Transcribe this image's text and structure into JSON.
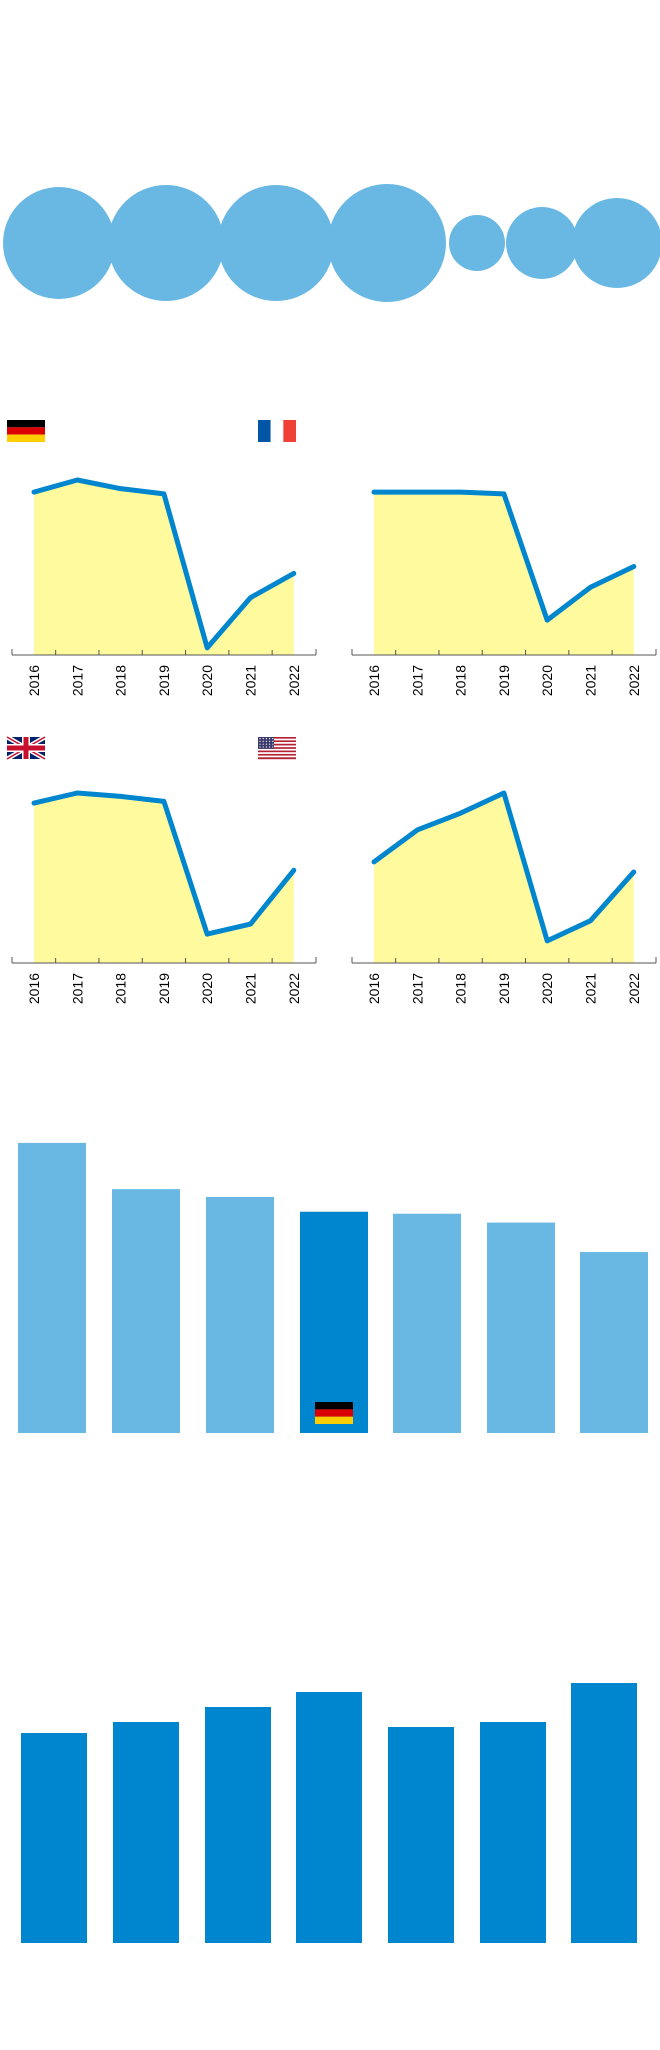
{
  "colors": {
    "light_blue": "#69b8e3",
    "dark_blue": "#0086ce",
    "area_fill": "#fefa9d",
    "axis": "#555555"
  },
  "icons": [
    "germany-flag-icon",
    "france-flag-icon",
    "uk-flag-icon",
    "usa-flag-icon",
    "germany-flag-icon"
  ],
  "chart_data": [
    {
      "type": "bubble",
      "title": "",
      "values": [
        56,
        58,
        58,
        59,
        28,
        36,
        45
      ],
      "color": "#69b8e3"
    },
    {
      "type": "area",
      "country": "germany",
      "flag": "germany-flag-icon",
      "categories": [
        "2016",
        "2017",
        "2018",
        "2019",
        "2020",
        "2021",
        "2022"
      ],
      "values": [
        93,
        100,
        95,
        92,
        3,
        32,
        46
      ],
      "ylim": [
        0,
        100
      ],
      "grid": false
    },
    {
      "type": "area",
      "country": "france",
      "flag": "france-flag-icon",
      "categories": [
        "2016",
        "2017",
        "2018",
        "2019",
        "2020",
        "2021",
        "2022"
      ],
      "values": [
        93,
        93,
        93,
        92,
        19,
        38,
        50
      ],
      "ylim": [
        0,
        100
      ],
      "grid": false
    },
    {
      "type": "area",
      "country": "uk",
      "flag": "uk-flag-icon",
      "categories": [
        "2016",
        "2017",
        "2018",
        "2019",
        "2020",
        "2021",
        "2022"
      ],
      "values": [
        94,
        100,
        98,
        95,
        16,
        22,
        54
      ],
      "ylim": [
        0,
        100
      ],
      "grid": false
    },
    {
      "type": "area",
      "country": "usa",
      "flag": "usa-flag-icon",
      "categories": [
        "2016",
        "2017",
        "2018",
        "2019",
        "2020",
        "2021",
        "2022"
      ],
      "values": [
        59,
        78,
        88,
        100,
        12,
        24,
        53
      ],
      "ylim": [
        0,
        100
      ],
      "grid": false
    },
    {
      "type": "bar",
      "values": [
        295,
        248,
        240,
        225,
        223,
        214,
        184
      ],
      "highlight_index": 3,
      "highlight_flag": "germany-flag-icon",
      "ylim": [
        0,
        300
      ]
    },
    {
      "type": "bar",
      "values": [
        210,
        221,
        236,
        251,
        216,
        221,
        260
      ],
      "ylim": [
        0,
        300
      ]
    }
  ]
}
